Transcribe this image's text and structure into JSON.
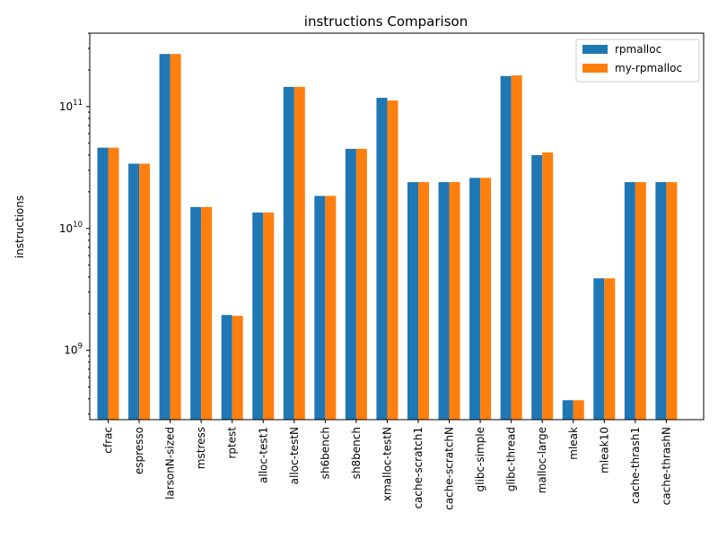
{
  "chart_data": {
    "type": "bar",
    "title": "instructions Comparison",
    "xlabel": "",
    "ylabel": "instructions",
    "yscale": "log",
    "ylim": [
      270000000.0,
      400000000000.0
    ],
    "grid": false,
    "legend_position": "top-right",
    "categories": [
      "cfrac",
      "espresso",
      "larsonN-sized",
      "mstress",
      "rptest",
      "alloc-test1",
      "alloc-testN",
      "sh6bench",
      "sh8bench",
      "xmalloc-testN",
      "cache-scratch1",
      "cache-scratchN",
      "glibc-simple",
      "glibc-thread",
      "malloc-large",
      "mleak",
      "mleak10",
      "cache-thrash1",
      "cache-thrashN"
    ],
    "series": [
      {
        "name": "rpmalloc",
        "color": "#1f77b4",
        "values": [
          46000000000.0,
          34000000000.0,
          270000000000.0,
          15000000000.0,
          1950000000.0,
          13500000000.0,
          145000000000.0,
          18500000000.0,
          45000000000.0,
          118000000000.0,
          24000000000.0,
          24000000000.0,
          26000000000.0,
          178000000000.0,
          40000000000.0,
          390000000.0,
          3900000000.0,
          24000000000.0,
          24000000000.0
        ]
      },
      {
        "name": "my-rpmalloc",
        "color": "#ff7f0e",
        "values": [
          46000000000.0,
          34000000000.0,
          270000000000.0,
          15000000000.0,
          1920000000.0,
          13500000000.0,
          145000000000.0,
          18500000000.0,
          45000000000.0,
          112000000000.0,
          24000000000.0,
          24000000000.0,
          26000000000.0,
          180000000000.0,
          42000000000.0,
          390000000.0,
          3900000000.0,
          24000000000.0,
          24000000000.0
        ]
      }
    ],
    "yticks": [
      {
        "value": 1000000000.0,
        "base": "10",
        "exp": "9"
      },
      {
        "value": 10000000000.0,
        "base": "10",
        "exp": "10"
      },
      {
        "value": 100000000000.0,
        "base": "10",
        "exp": "11"
      }
    ]
  }
}
